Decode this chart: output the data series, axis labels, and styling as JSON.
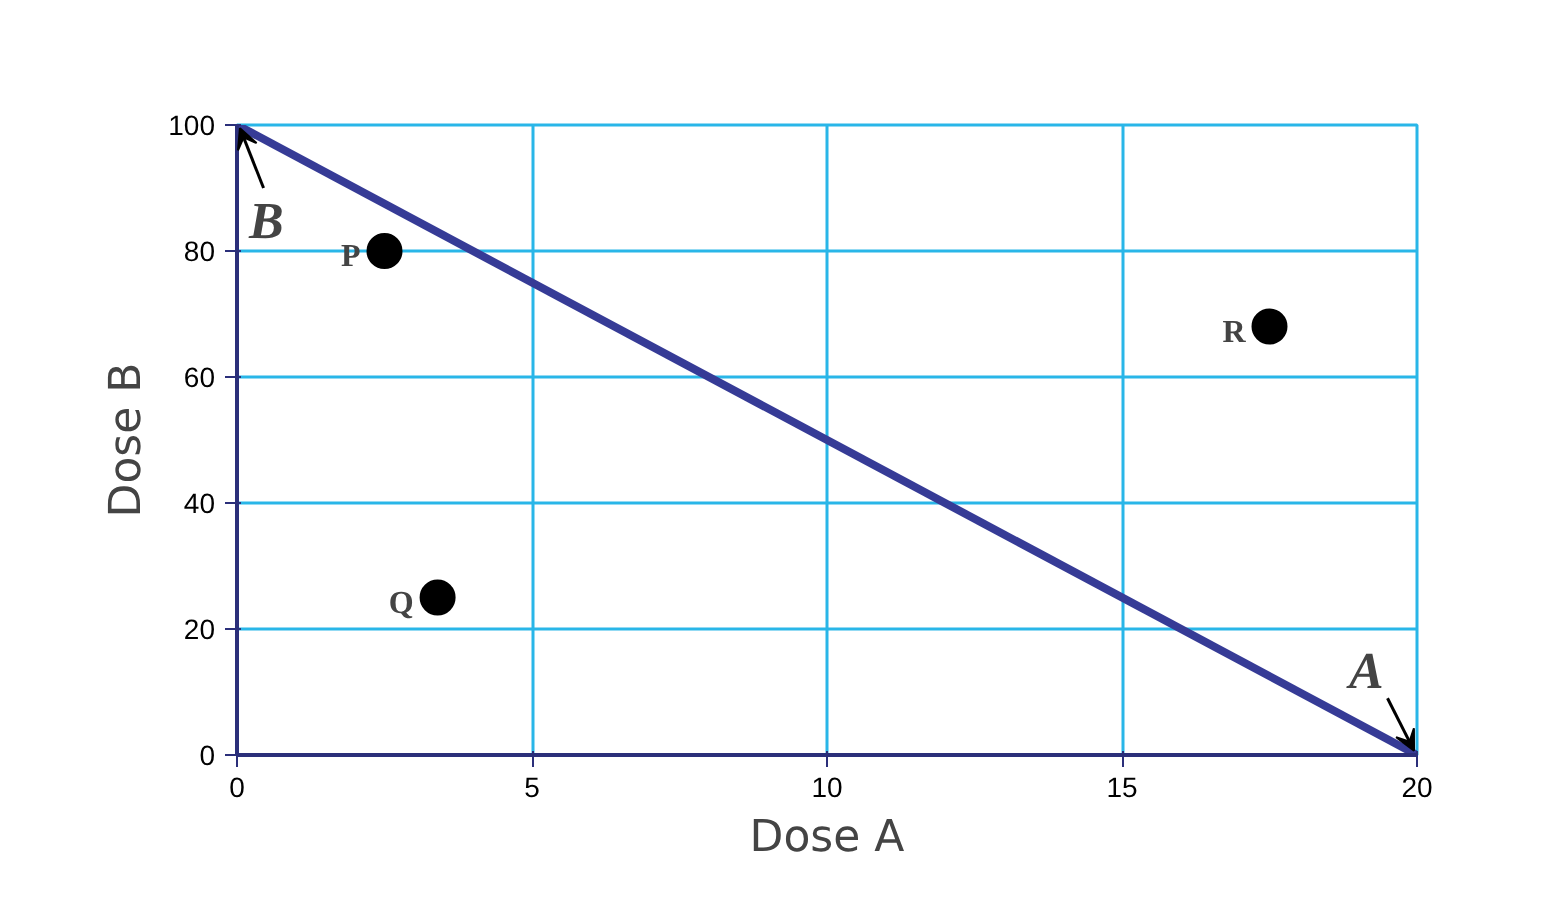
{
  "chart_data": {
    "type": "scatter",
    "xlabel": "Dose A",
    "ylabel": "Dose B",
    "xlim": [
      0,
      20
    ],
    "ylim": [
      0,
      100
    ],
    "xticks": [
      0,
      5,
      10,
      15,
      20
    ],
    "yticks": [
      0,
      20,
      40,
      60,
      80,
      100
    ],
    "grid": true,
    "marker": "circle",
    "series": [
      {
        "type": "line",
        "color": "#363b96",
        "x": [
          0,
          20
        ],
        "values": [
          100,
          0
        ],
        "line_style": "solid",
        "marker": "none"
      },
      {
        "color": "#000000",
        "x": [
          2.5,
          3.4,
          17.5
        ],
        "values": [
          80,
          25,
          68
        ]
      }
    ],
    "annotations": [
      {
        "text": "P",
        "x": 2.5,
        "y": 80
      },
      {
        "text": "Q",
        "x": 3.4,
        "y": 25
      },
      {
        "text": "R",
        "x": 17.5,
        "y": 68
      },
      {
        "text": "B",
        "x": 0,
        "y": 100
      },
      {
        "text": "A",
        "x": 20,
        "y": 0
      }
    ]
  }
}
